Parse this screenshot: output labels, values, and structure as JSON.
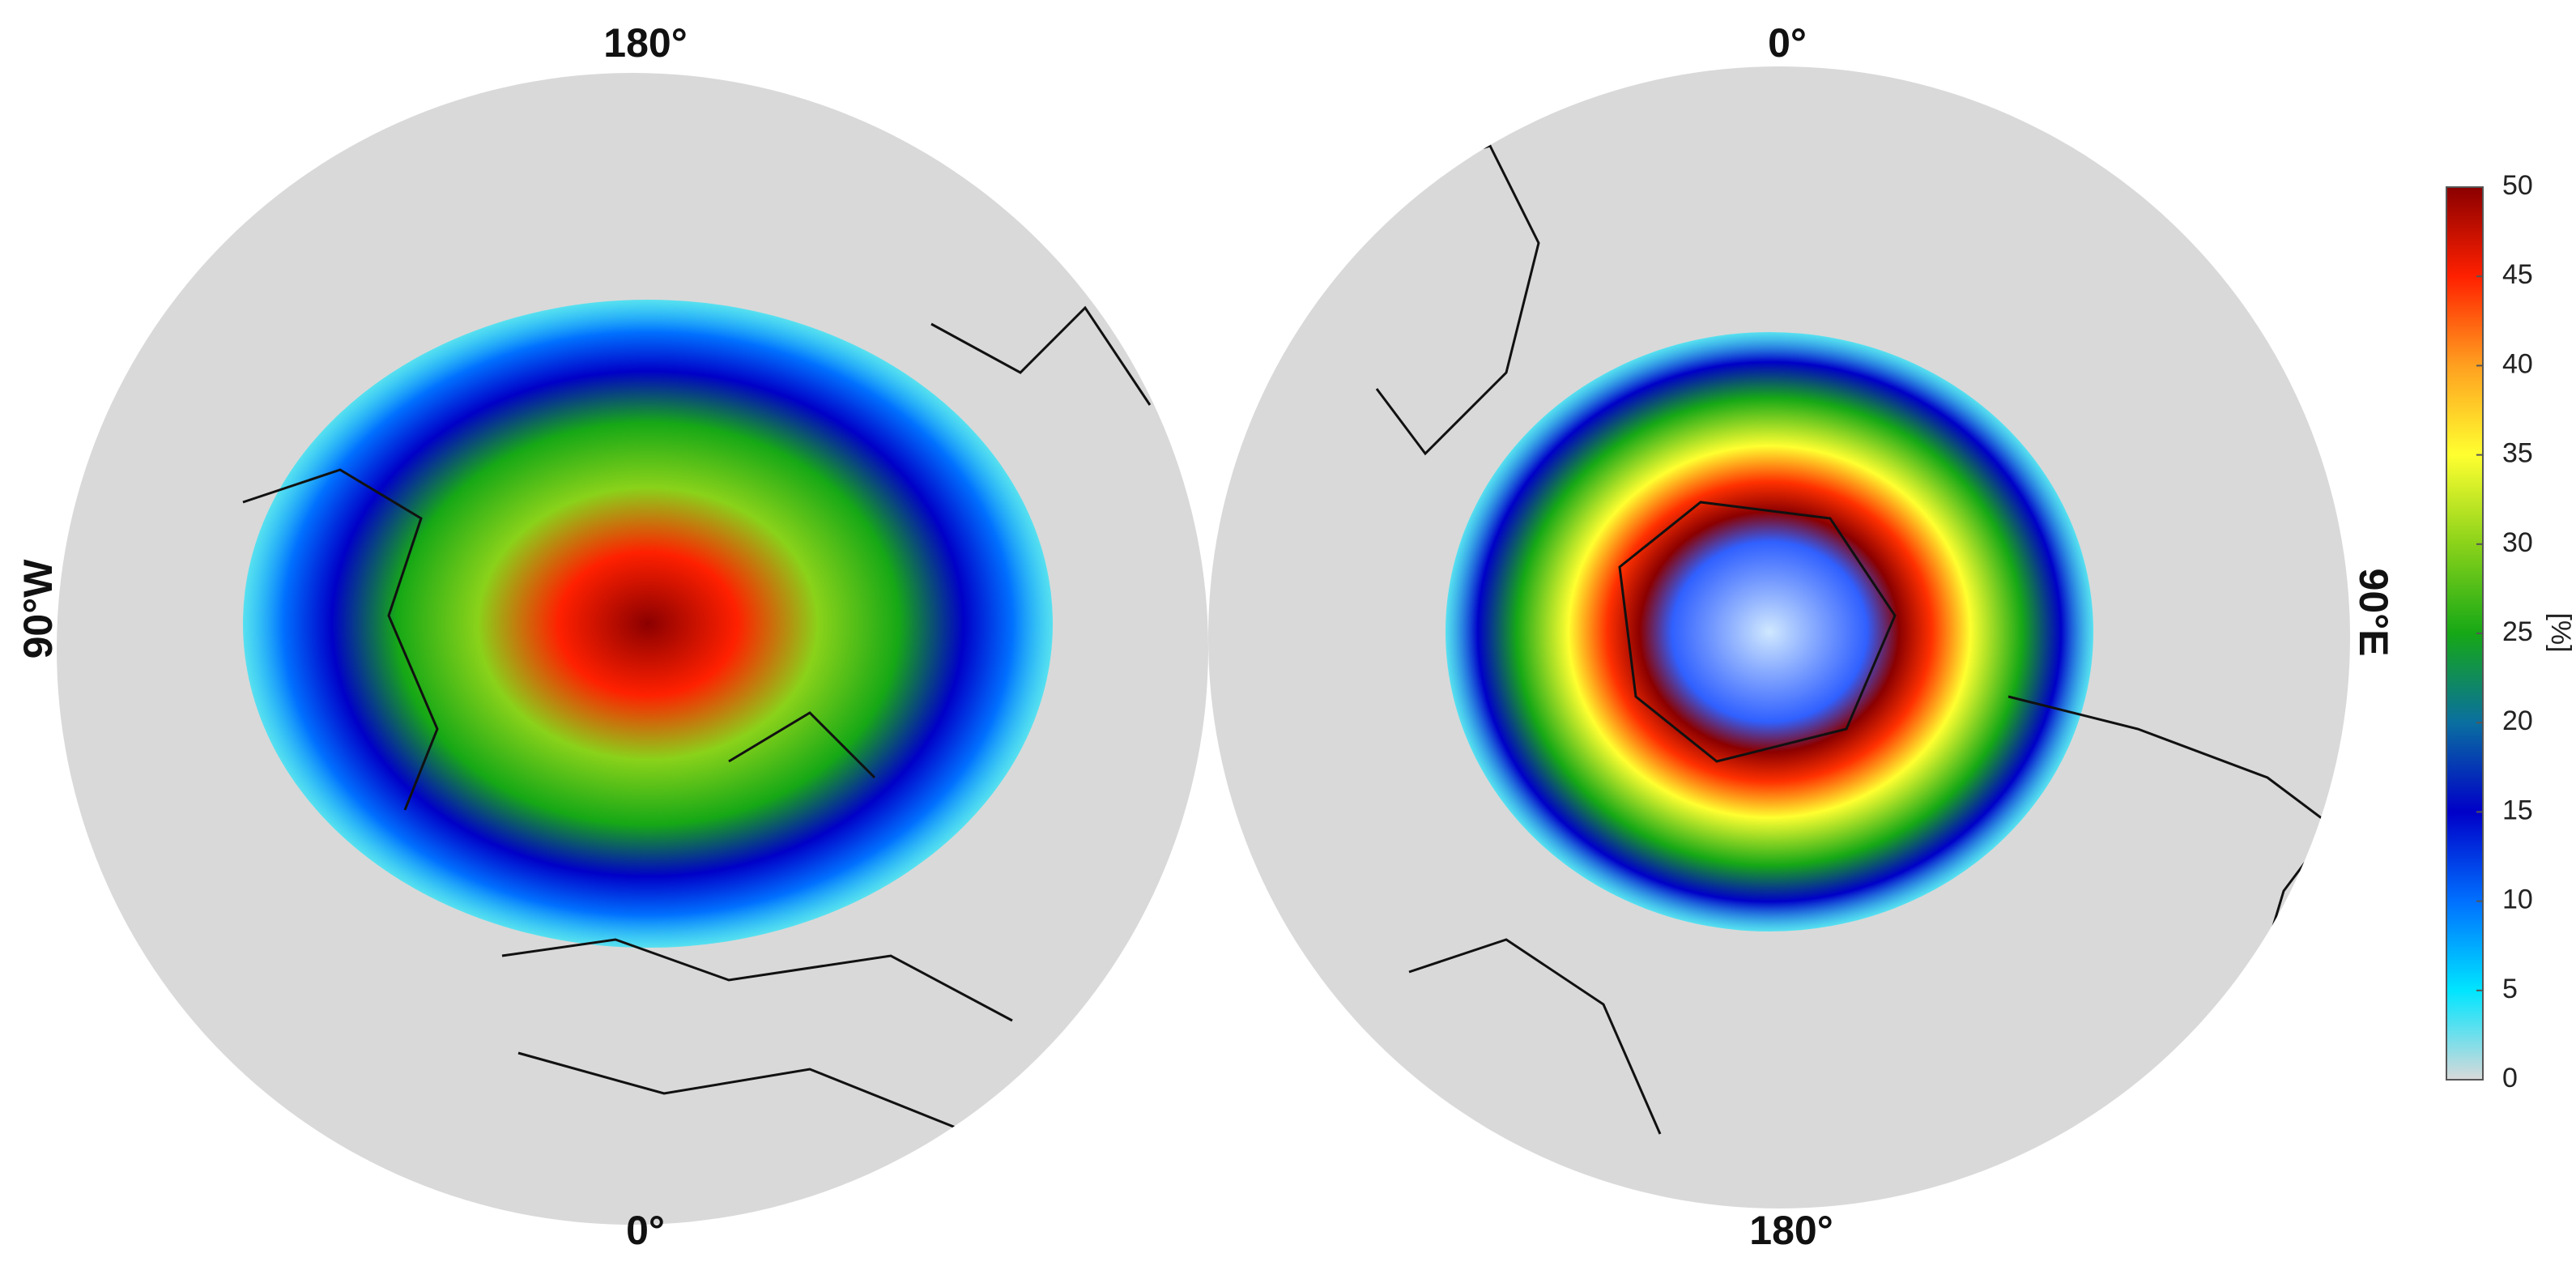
{
  "maps": [
    {
      "labels": {
        "top": "180°",
        "left": "90°W",
        "bottom": "0°"
      }
    },
    {
      "labels": {
        "top": "0°",
        "right": "90°E",
        "bottom": "180°"
      }
    }
  ],
  "colorbar": {
    "label": "[%]",
    "lim": [
      0,
      50
    ],
    "ticks": [
      0,
      5,
      10,
      15,
      20,
      25,
      30,
      35,
      40,
      45,
      50
    ],
    "colors": [
      "#d9d9d9",
      "#00e5ff",
      "#0070ff",
      "#0000c8",
      "#0a6fa0",
      "#16a816",
      "#8ad21a",
      "#ffff30",
      "#ffa020",
      "#ff2000",
      "#8b0000"
    ]
  }
}
